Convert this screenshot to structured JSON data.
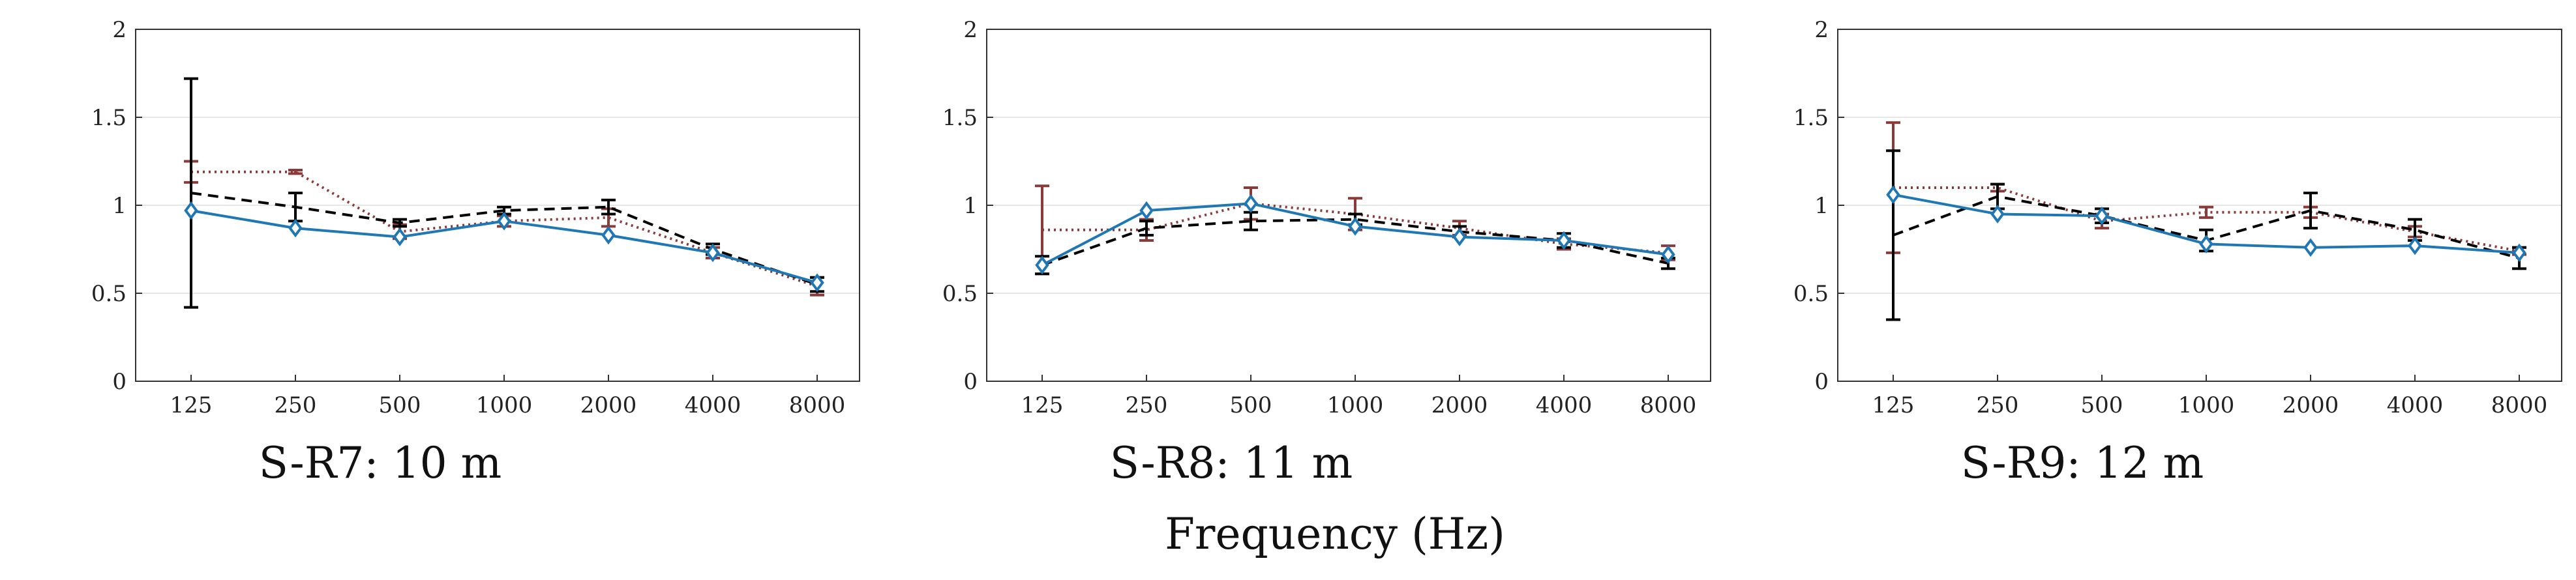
{
  "figure": {
    "xlabel": "Frequency (Hz)"
  },
  "colors": {
    "blue": "#1f77b4",
    "black": "#000000",
    "red": "#8b3a3a",
    "grid": "#e6e6e6",
    "axis": "#333333"
  },
  "chart_data": [
    {
      "type": "line",
      "title": "S-R7: 10 m",
      "categories": [
        "125",
        "250",
        "500",
        "1000",
        "2000",
        "4000",
        "8000"
      ],
      "ylim": [
        0,
        2
      ],
      "yticks": [
        "0",
        "0.5",
        "1",
        "1.5",
        "2"
      ],
      "grid": "horizontal",
      "series": [
        {
          "style": "solid-diamond",
          "color": "blue",
          "values": [
            0.97,
            0.87,
            0.82,
            0.91,
            0.83,
            0.73,
            0.56
          ]
        },
        {
          "style": "dashed-errorbar",
          "color": "black",
          "values": [
            1.07,
            0.99,
            0.9,
            0.97,
            0.99,
            0.75,
            0.55
          ],
          "errors": [
            0.65,
            0.08,
            0.02,
            0.02,
            0.04,
            0.03,
            0.04
          ]
        },
        {
          "style": "dotted-errorbar",
          "color": "red",
          "values": [
            1.19,
            1.19,
            0.85,
            0.91,
            0.93,
            0.73,
            0.54
          ],
          "errors": [
            0.06,
            0.01,
            0.04,
            0.03,
            0.05,
            0.03,
            0.05
          ]
        }
      ]
    },
    {
      "type": "line",
      "title": "S-R8: 11 m",
      "categories": [
        "125",
        "250",
        "500",
        "1000",
        "2000",
        "4000",
        "8000"
      ],
      "ylim": [
        0,
        2
      ],
      "yticks": [
        "0",
        "0.5",
        "1",
        "1.5",
        "2"
      ],
      "grid": "horizontal",
      "series": [
        {
          "style": "solid-diamond",
          "color": "blue",
          "values": [
            0.66,
            0.97,
            1.01,
            0.88,
            0.82,
            0.8,
            0.72
          ]
        },
        {
          "style": "dashed-errorbar",
          "color": "black",
          "values": [
            0.66,
            0.87,
            0.91,
            0.92,
            0.85,
            0.8,
            0.67
          ],
          "errors": [
            0.05,
            0.04,
            0.05,
            0.03,
            0.03,
            0.04,
            0.03
          ]
        },
        {
          "style": "dotted-errorbar",
          "color": "red",
          "values": [
            0.86,
            0.86,
            1.01,
            0.95,
            0.87,
            0.78,
            0.73
          ],
          "errors": [
            0.25,
            0.06,
            0.09,
            0.09,
            0.04,
            0.03,
            0.04
          ]
        }
      ]
    },
    {
      "type": "line",
      "title": "S-R9: 12 m",
      "categories": [
        "125",
        "250",
        "500",
        "1000",
        "2000",
        "4000",
        "8000"
      ],
      "ylim": [
        0,
        2
      ],
      "yticks": [
        "0",
        "0.5",
        "1",
        "1.5",
        "2"
      ],
      "grid": "horizontal",
      "series": [
        {
          "style": "solid-diamond",
          "color": "blue",
          "values": [
            1.06,
            0.95,
            0.94,
            0.78,
            0.76,
            0.77,
            0.73
          ]
        },
        {
          "style": "dashed-errorbar",
          "color": "black",
          "values": [
            0.83,
            1.05,
            0.94,
            0.8,
            0.97,
            0.86,
            0.7
          ],
          "errors": [
            0.48,
            0.07,
            0.04,
            0.06,
            0.1,
            0.06,
            0.06
          ]
        },
        {
          "style": "dotted-errorbar",
          "color": "red",
          "values": [
            1.1,
            1.1,
            0.91,
            0.96,
            0.96,
            0.85,
            0.74
          ],
          "errors": [
            0.37,
            0.02,
            0.04,
            0.03,
            0.03,
            0.03,
            0.02
          ]
        }
      ]
    }
  ]
}
